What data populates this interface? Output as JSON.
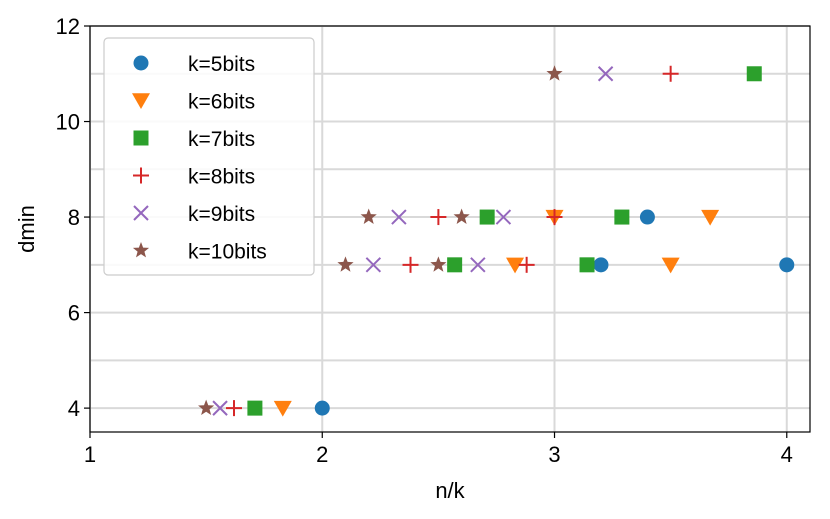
{
  "chart_data": {
    "type": "scatter",
    "xlabel": "n/k",
    "ylabel": "dmin",
    "xlim": [
      1,
      4.1
    ],
    "ylim": [
      3.5,
      12
    ],
    "xticks": [
      "1",
      "2",
      "3",
      "4"
    ],
    "xtick_values": [
      1,
      2,
      3,
      4
    ],
    "yticks": [
      "4",
      "6",
      "8",
      "10",
      "12"
    ],
    "ytick_values": [
      4,
      6,
      8,
      10,
      12
    ],
    "grid": true,
    "legend_position": "top-left",
    "series": [
      {
        "name": "k=5bits",
        "color": "#1f77b4",
        "marker": "circle",
        "points": [
          [
            2.0,
            4
          ],
          [
            3.2,
            7
          ],
          [
            3.4,
            8
          ],
          [
            4.0,
            7
          ]
        ]
      },
      {
        "name": "k=6bits",
        "color": "#ff7f0e",
        "marker": "triangle-down",
        "points": [
          [
            1.83,
            4
          ],
          [
            2.83,
            7
          ],
          [
            3.0,
            8
          ],
          [
            3.5,
            7
          ],
          [
            3.67,
            8
          ]
        ]
      },
      {
        "name": "k=7bits",
        "color": "#2ca02c",
        "marker": "square",
        "points": [
          [
            1.71,
            4
          ],
          [
            2.57,
            7
          ],
          [
            2.71,
            8
          ],
          [
            3.14,
            7
          ],
          [
            3.29,
            8
          ],
          [
            3.86,
            11
          ]
        ]
      },
      {
        "name": "k=8bits",
        "color": "#d62728",
        "marker": "plus",
        "points": [
          [
            1.62,
            4
          ],
          [
            2.38,
            7
          ],
          [
            2.5,
            8
          ],
          [
            2.88,
            7
          ],
          [
            3.0,
            8
          ],
          [
            3.5,
            11
          ]
        ]
      },
      {
        "name": "k=9bits",
        "color": "#9467bd",
        "marker": "x",
        "points": [
          [
            1.56,
            4
          ],
          [
            2.22,
            7
          ],
          [
            2.33,
            8
          ],
          [
            2.67,
            7
          ],
          [
            2.78,
            8
          ],
          [
            3.22,
            11
          ]
        ]
      },
      {
        "name": "k=10bits",
        "color": "#8c564b",
        "marker": "star",
        "points": [
          [
            1.5,
            4
          ],
          [
            2.1,
            7
          ],
          [
            2.2,
            8
          ],
          [
            2.5,
            7
          ],
          [
            2.6,
            8
          ],
          [
            3.0,
            11
          ]
        ]
      }
    ]
  }
}
